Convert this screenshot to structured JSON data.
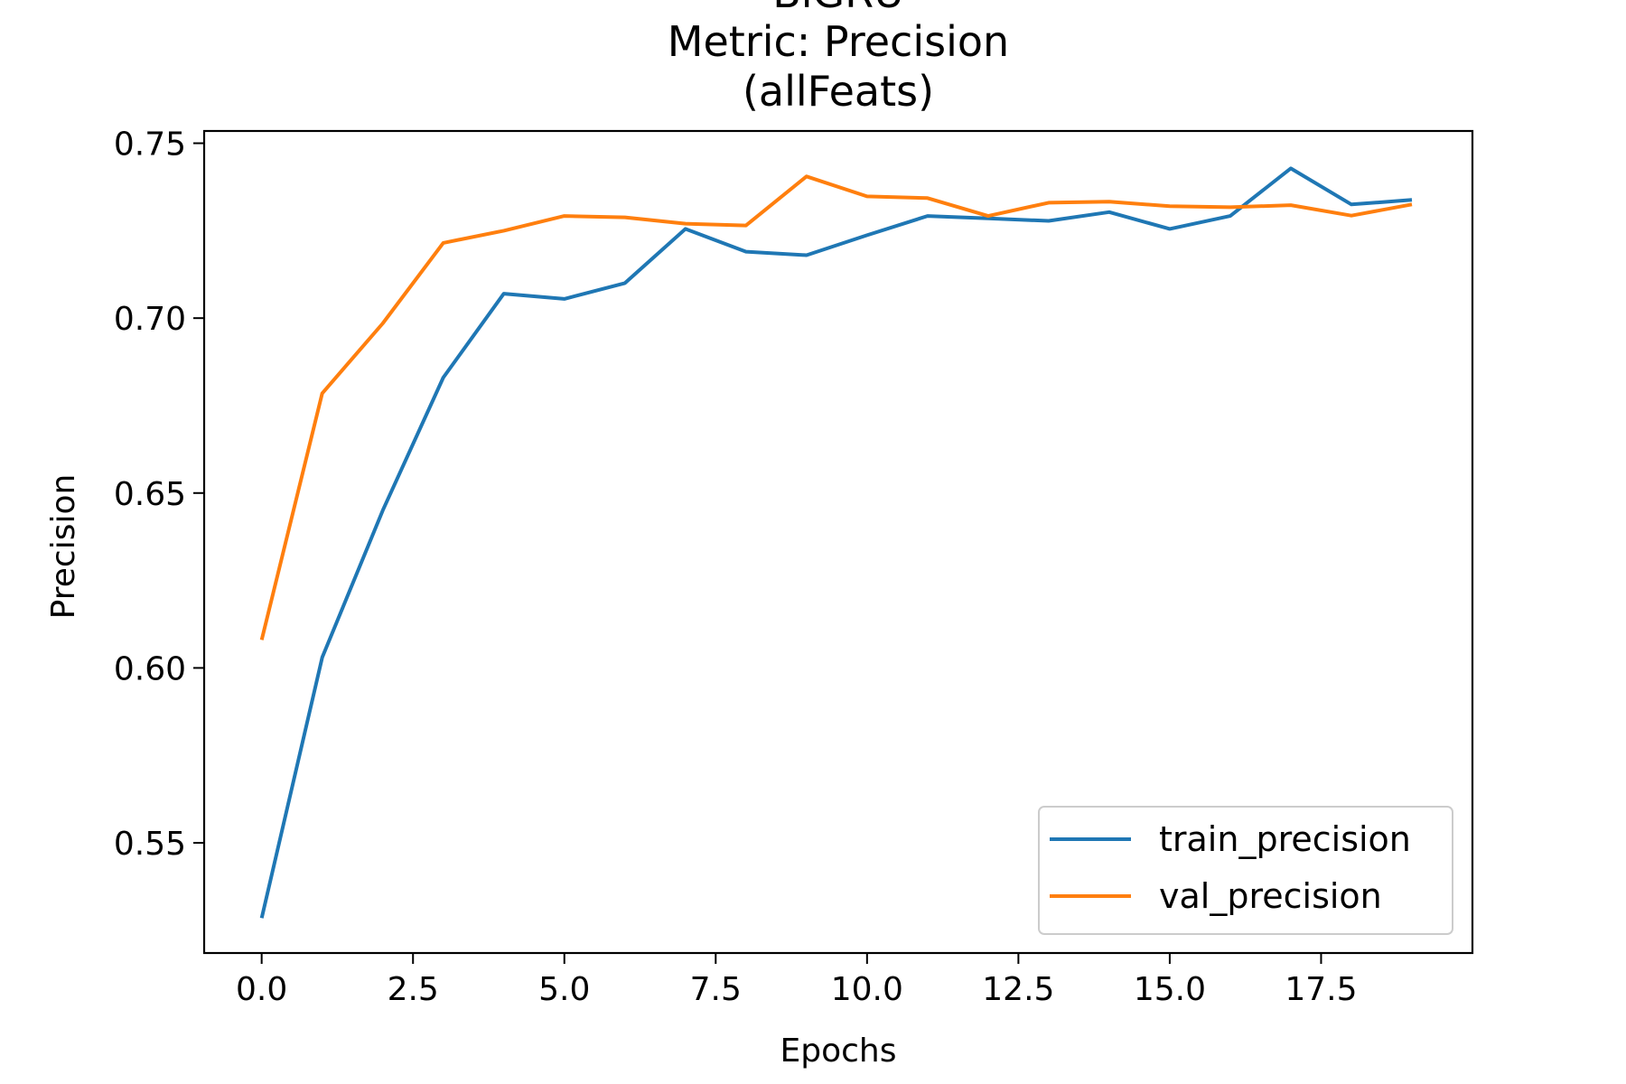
{
  "chart_data": {
    "type": "line",
    "title_lines": [
      "BiGRU",
      "Metric: Precision",
      "(allFeats)"
    ],
    "xlabel": "Epochs",
    "ylabel": "Precision",
    "xlim": [
      -0.95,
      20.0
    ],
    "ylim": [
      0.5185,
      0.7535
    ],
    "xticks": [
      0.0,
      2.5,
      5.0,
      7.5,
      10.0,
      12.5,
      15.0,
      17.5
    ],
    "xtick_labels": [
      "0.0",
      "2.5",
      "5.0",
      "7.5",
      "10.0",
      "12.5",
      "15.0",
      "17.5"
    ],
    "yticks": [
      0.55,
      0.6,
      0.65,
      0.7,
      0.75
    ],
    "ytick_labels": [
      "0.55",
      "0.60",
      "0.65",
      "0.70",
      "0.75"
    ],
    "x": [
      0,
      1,
      2,
      3,
      4,
      5,
      6,
      7,
      8,
      9,
      10,
      11,
      12,
      13,
      14,
      15,
      16,
      17,
      18,
      19
    ],
    "series": [
      {
        "name": "train_precision",
        "color": "#1f77b4",
        "values": [
          0.5285,
          0.603,
          0.645,
          0.683,
          0.707,
          0.7055,
          0.71,
          0.7255,
          0.719,
          0.718,
          0.7237,
          0.7292,
          0.7285,
          0.7278,
          0.7303,
          0.7255,
          0.7292,
          0.7428,
          0.7325,
          0.7338
        ]
      },
      {
        "name": "val_precision",
        "color": "#ff7f0e",
        "values": [
          0.608,
          0.6785,
          0.6985,
          0.7215,
          0.725,
          0.7292,
          0.7288,
          0.727,
          0.7265,
          0.7405,
          0.7348,
          0.7343,
          0.7292,
          0.733,
          0.7333,
          0.732,
          0.7317,
          0.7323,
          0.7293,
          0.7325
        ]
      }
    ],
    "legend_position": "lower-right",
    "grid": false
  }
}
